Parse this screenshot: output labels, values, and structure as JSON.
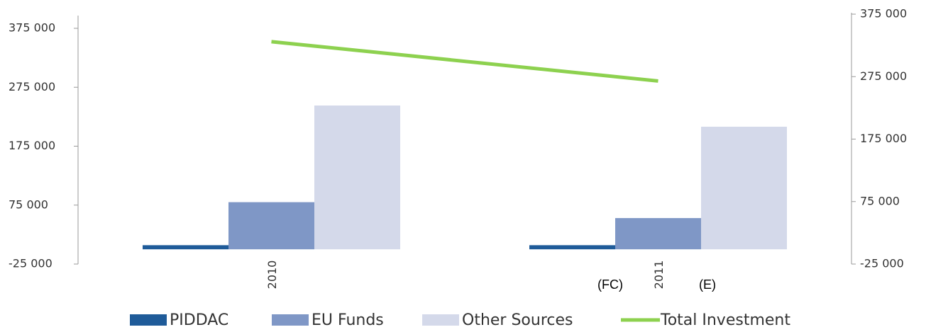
{
  "chart_data": {
    "type": "bar",
    "categories": [
      "2010",
      "2011"
    ],
    "series": [
      {
        "name": "PIDDAC",
        "color": "#1f5b99",
        "values": [
          7000,
          7000
        ]
      },
      {
        "name": "EU Funds",
        "color": "#7f97c6",
        "values": [
          80000,
          53000
        ]
      },
      {
        "name": "Other Sources",
        "color": "#d4d9ea",
        "values": [
          244000,
          208000
        ]
      },
      {
        "name": "Total Investment",
        "color": "#8dd14f",
        "type": "line",
        "axis": "y2",
        "values": [
          331000,
          268000
        ]
      }
    ],
    "ylim": [
      -25000,
      375000
    ],
    "yticks": [
      {
        "value": -25000,
        "label": "-25 000"
      },
      {
        "value": 75000,
        "label": "75 000"
      },
      {
        "value": 175000,
        "label": "175 000"
      },
      {
        "value": 275000,
        "label": "275 000"
      },
      {
        "value": 375000,
        "label": "375 000"
      }
    ],
    "y2lim": [
      -25000,
      375000
    ],
    "y2ticks": [
      {
        "value": -25000,
        "label": "-25 000"
      },
      {
        "value": 75000,
        "label": "75 000"
      },
      {
        "value": 175000,
        "label": "175 000"
      },
      {
        "value": 275000,
        "label": "275 000"
      },
      {
        "value": 375000,
        "label": "375 000"
      }
    ],
    "annotations": [
      "(FC)",
      "(E)"
    ],
    "legend": "bottom"
  }
}
